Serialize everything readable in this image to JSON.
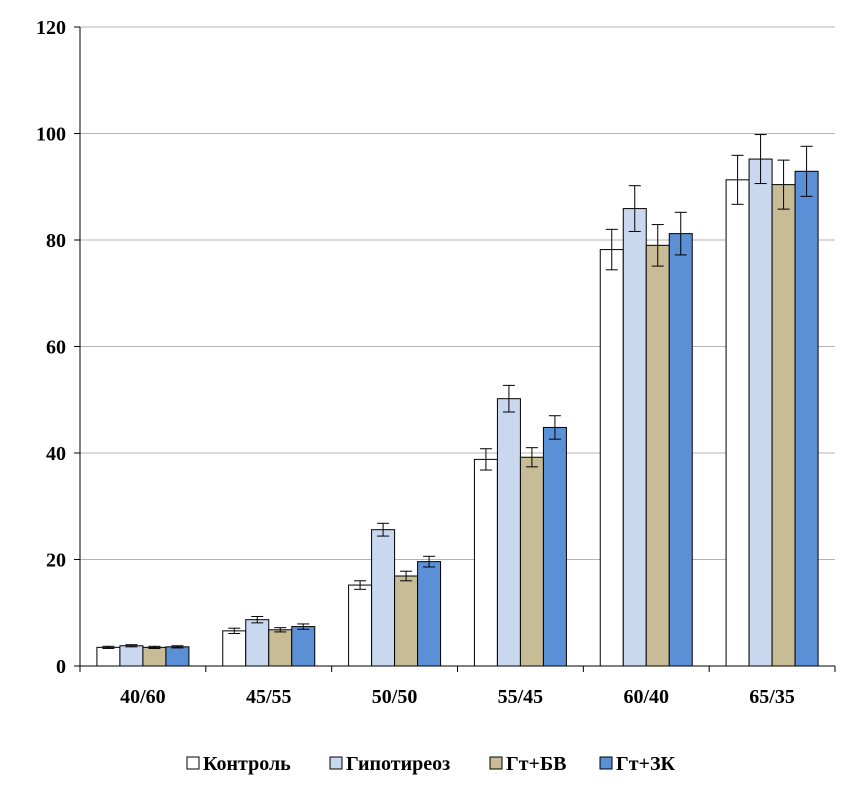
{
  "chart_data": {
    "type": "bar",
    "categories": [
      "40/60",
      "45/55",
      "50/50",
      "55/45",
      "60/40",
      "65/35"
    ],
    "series": [
      {
        "name": "Контроль",
        "color": "#ffffff",
        "values": [
          3.5,
          6.6,
          15.2,
          38.8,
          78.2,
          91.3
        ],
        "errors": [
          0.2,
          0.5,
          0.8,
          2.0,
          3.8,
          4.6
        ]
      },
      {
        "name": "Гипотиреоз",
        "color": "#c9d8ef",
        "values": [
          3.8,
          8.7,
          25.6,
          50.2,
          85.9,
          95.2
        ],
        "errors": [
          0.2,
          0.6,
          1.2,
          2.5,
          4.3,
          4.6
        ]
      },
      {
        "name": "Гт+БВ",
        "color": "#c8bc96",
        "values": [
          3.5,
          6.8,
          16.9,
          39.2,
          79.0,
          90.4
        ],
        "errors": [
          0.2,
          0.4,
          0.9,
          1.8,
          3.9,
          4.6
        ]
      },
      {
        "name": "Гт+ЗК",
        "color": "#5b8fd6",
        "values": [
          3.6,
          7.4,
          19.6,
          44.8,
          81.2,
          92.9
        ],
        "errors": [
          0.2,
          0.5,
          1.0,
          2.2,
          4.0,
          4.7
        ]
      }
    ],
    "ylim": [
      0,
      120
    ],
    "yticks": [
      "0",
      "20",
      "40",
      "60",
      "80",
      "100",
      "120"
    ],
    "grid": true,
    "legend_position": "bottom",
    "error_bars": true
  }
}
